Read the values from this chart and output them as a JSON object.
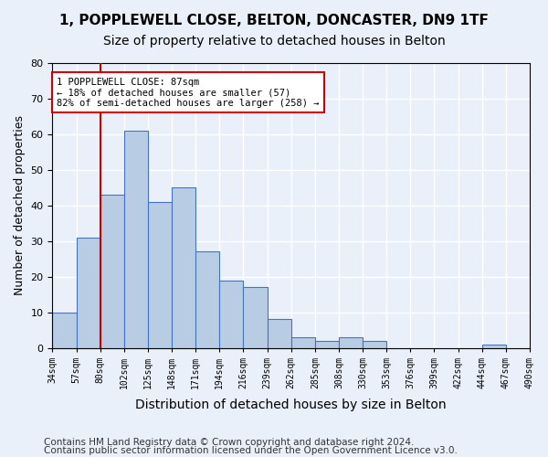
{
  "title1": "1, POPPLEWELL CLOSE, BELTON, DONCASTER, DN9 1TF",
  "title2": "Size of property relative to detached houses in Belton",
  "xlabel": "Distribution of detached houses by size in Belton",
  "ylabel": "Number of detached properties",
  "footnote1": "Contains HM Land Registry data © Crown copyright and database right 2024.",
  "footnote2": "Contains public sector information licensed under the Open Government Licence v3.0.",
  "bin_labels": [
    "34sqm",
    "57sqm",
    "80sqm",
    "102sqm",
    "125sqm",
    "148sqm",
    "171sqm",
    "194sqm",
    "216sqm",
    "239sqm",
    "262sqm",
    "285sqm",
    "308sqm",
    "330sqm",
    "353sqm",
    "376sqm",
    "399sqm",
    "422sqm",
    "444sqm",
    "467sqm",
    "490sqm"
  ],
  "bar_values": [
    10,
    31,
    43,
    61,
    41,
    45,
    27,
    19,
    17,
    8,
    3,
    2,
    3,
    2,
    0,
    0,
    0,
    0,
    1,
    0
  ],
  "bar_color": "#b8cce4",
  "bar_edgecolor": "#4472c4",
  "bg_color": "#eaf0f9",
  "grid_color": "#ffffff",
  "vline_x": 2,
  "vline_color": "#cc0000",
  "ylim": [
    0,
    80
  ],
  "yticks": [
    0,
    10,
    20,
    30,
    40,
    50,
    60,
    70,
    80
  ],
  "annotation_line1": "1 POPPLEWELL CLOSE: 87sqm",
  "annotation_line2": "← 18% of detached houses are smaller (57)",
  "annotation_line3": "82% of semi-detached houses are larger (258) →",
  "annotation_box_color": "#ffffff",
  "annotation_box_edgecolor": "#cc0000",
  "title1_fontsize": 11,
  "title2_fontsize": 10,
  "xlabel_fontsize": 10,
  "ylabel_fontsize": 9,
  "footnote_fontsize": 7.5
}
